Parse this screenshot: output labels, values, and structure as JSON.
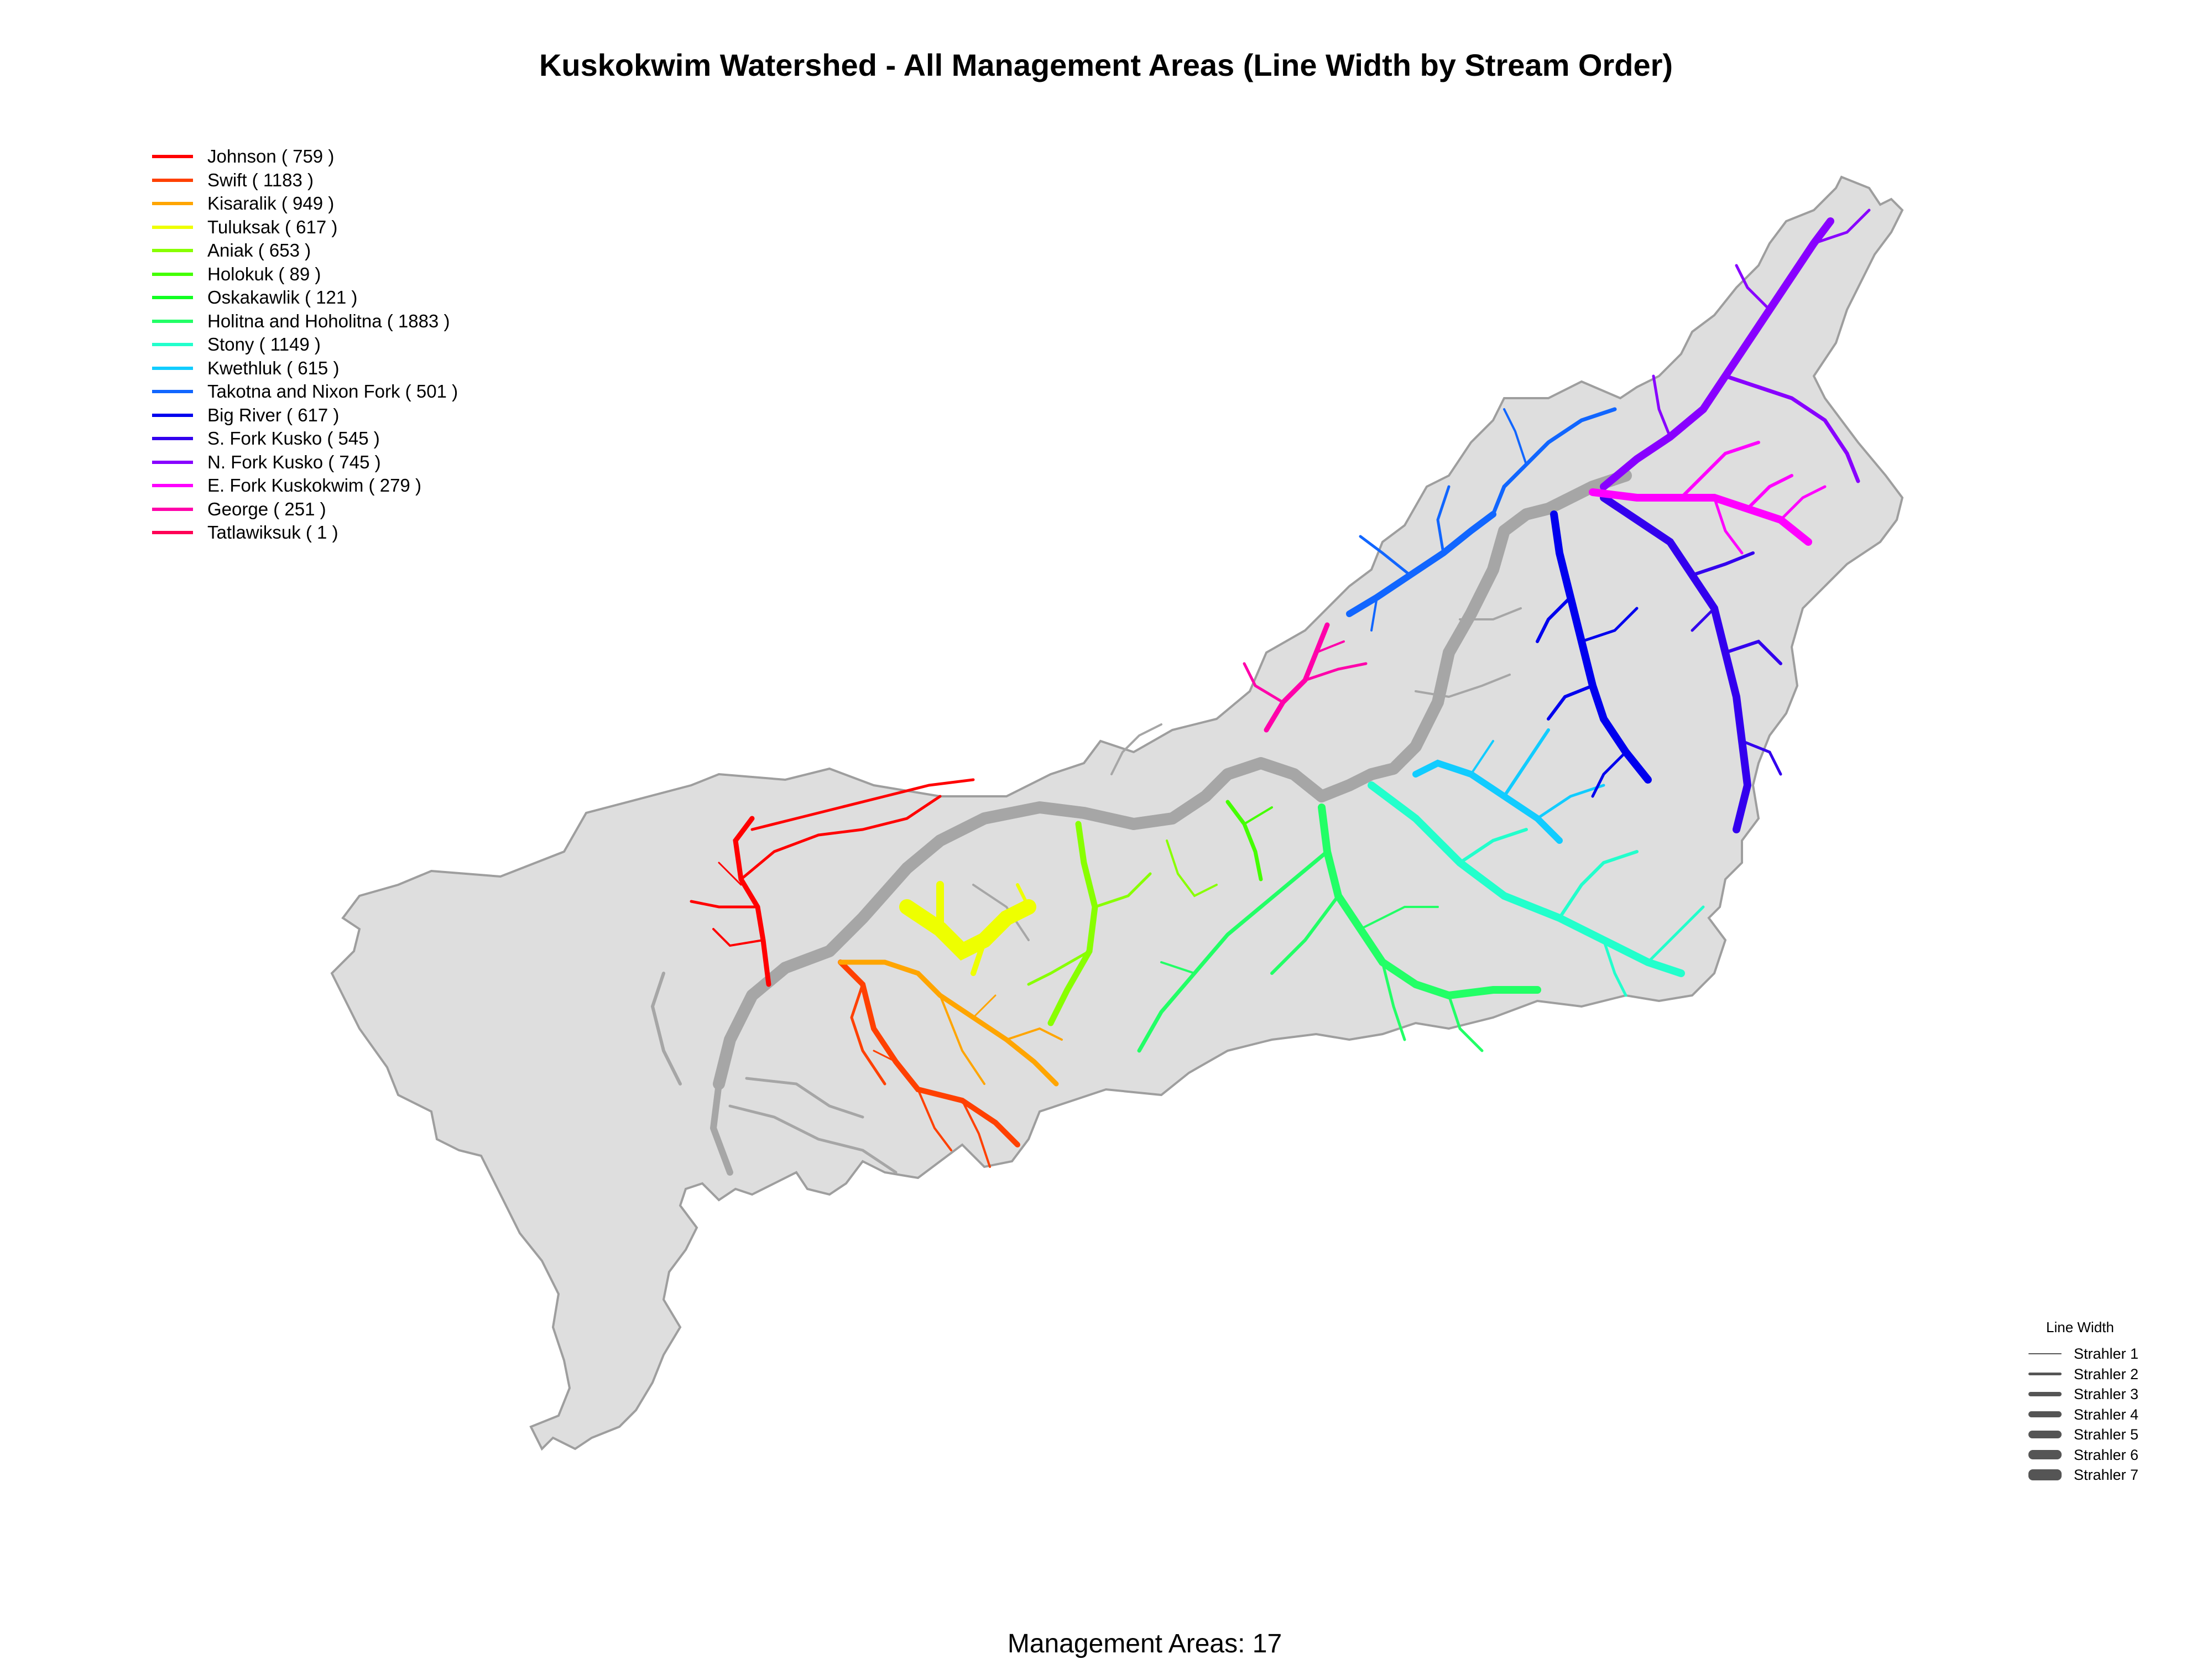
{
  "title": "Kuskokwim Watershed - All Management Areas (Line Width by Stream Order)",
  "caption": "Management Areas: 17",
  "colors": {
    "land": "#dedede",
    "outline": "#9e9e9e",
    "main_river": "#a6a6a6",
    "width_legend": "#555555"
  },
  "legend": [
    {
      "label": "Johnson ( 759 )",
      "color": "#ff0000"
    },
    {
      "label": "Swift ( 1183 )",
      "color": "#ff4000"
    },
    {
      "label": "Kisaralik ( 949 )",
      "color": "#ffa500"
    },
    {
      "label": "Tuluksak ( 617 )",
      "color": "#eeff00"
    },
    {
      "label": "Aniak ( 653 )",
      "color": "#88ff00"
    },
    {
      "label": "Holokuk ( 89 )",
      "color": "#44ff00"
    },
    {
      "label": "Oskakawlik ( 121 )",
      "color": "#11ff22"
    },
    {
      "label": "Holitna and Hoholitna ( 1883 )",
      "color": "#22ff66"
    },
    {
      "label": "Stony ( 1149 )",
      "color": "#22ffcc"
    },
    {
      "label": "Kwethluk ( 615 )",
      "color": "#11ccff"
    },
    {
      "label": "Takotna and Nixon Fork ( 501 )",
      "color": "#1166ff"
    },
    {
      "label": "Big River  ( 617 )",
      "color": "#0000ee"
    },
    {
      "label": "S. Fork Kusko ( 545 )",
      "color": "#3300ee"
    },
    {
      "label": "N. Fork Kusko ( 745 )",
      "color": "#8800ff"
    },
    {
      "label": "E. Fork Kuskokwim ( 279 )",
      "color": "#ff00ff"
    },
    {
      "label": "George ( 251 )",
      "color": "#ff00aa"
    },
    {
      "label": "Tatlawiksuk ( 1 )",
      "color": "#ff0055"
    }
  ],
  "width_legend": {
    "title": "Line Width",
    "items": [
      "Strahler 1",
      "Strahler 2",
      "Strahler 3",
      "Strahler 4",
      "Strahler 5",
      "Strahler 6",
      "Strahler 7"
    ]
  }
}
